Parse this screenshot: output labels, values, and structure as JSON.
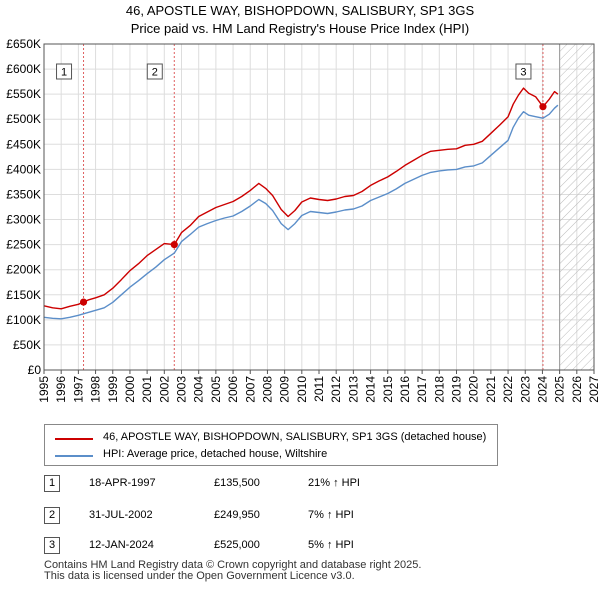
{
  "title_line1": "46, APOSTLE WAY, BISHOPDOWN, SALISBURY, SP1 3GS",
  "title_line2": "Price paid vs. HM Land Registry's House Price Index (HPI)",
  "colors": {
    "property": "#cc0000",
    "hpi": "#5b8ec9",
    "grid": "#dddddd",
    "vline": "#e06060",
    "hatch": "#bbbbbb",
    "marker_bg": "#ffffff"
  },
  "legend": {
    "property": "46, APOSTLE WAY, BISHOPDOWN, SALISBURY, SP1 3GS (detached house)",
    "hpi": "HPI: Average price, detached house, Wiltshire"
  },
  "sales": [
    {
      "num": "1",
      "date": "18-APR-1997",
      "price": "£135,500",
      "hpi": "21% ↑ HPI"
    },
    {
      "num": "2",
      "date": "31-JUL-2002",
      "price": "£249,950",
      "hpi": "7% ↑ HPI"
    },
    {
      "num": "3",
      "date": "12-JAN-2024",
      "price": "£525,000",
      "hpi": "5% ↑ HPI"
    }
  ],
  "footer": {
    "line1": "Contains HM Land Registry data © Crown copyright and database right 2025.",
    "line2": "This data is licensed under the Open Government Licence v3.0."
  },
  "chart_data": {
    "type": "line",
    "xlim": [
      1995,
      2027
    ],
    "ylim": [
      0,
      650000
    ],
    "x_ticks": [
      "1995",
      "1996",
      "1997",
      "1998",
      "1999",
      "2000",
      "2001",
      "2002",
      "2003",
      "2004",
      "2005",
      "2006",
      "2007",
      "2008",
      "2009",
      "2010",
      "2011",
      "2012",
      "2013",
      "2014",
      "2015",
      "2016",
      "2017",
      "2018",
      "2019",
      "2020",
      "2021",
      "2022",
      "2023",
      "2024",
      "2025",
      "2026",
      "2027"
    ],
    "y_ticks": [
      {
        "v": 0,
        "label": "£0"
      },
      {
        "v": 50000,
        "label": "£50K"
      },
      {
        "v": 100000,
        "label": "£100K"
      },
      {
        "v": 150000,
        "label": "£150K"
      },
      {
        "v": 200000,
        "label": "£200K"
      },
      {
        "v": 250000,
        "label": "£250K"
      },
      {
        "v": 300000,
        "label": "£300K"
      },
      {
        "v": 350000,
        "label": "£350K"
      },
      {
        "v": 400000,
        "label": "£400K"
      },
      {
        "v": 450000,
        "label": "£450K"
      },
      {
        "v": 500000,
        "label": "£500K"
      },
      {
        "v": 550000,
        "label": "£550K"
      },
      {
        "v": 600000,
        "label": "£600K"
      },
      {
        "v": 650000,
        "label": "£650K"
      }
    ],
    "forecast_start": 2025.0,
    "series": [
      {
        "name": "46, APOSTLE WAY, BISHOPDOWN, SALISBURY, SP1 3GS (detached house)",
        "x": [
          1995.0,
          1995.5,
          1996.0,
          1996.5,
          1997.0,
          1997.3,
          1997.6,
          1998.0,
          1998.5,
          1999.0,
          1999.5,
          2000.0,
          2000.5,
          2001.0,
          2001.5,
          2002.0,
          2002.58,
          2003.0,
          2003.5,
          2004.0,
          2004.5,
          2005.0,
          2005.5,
          2006.0,
          2006.5,
          2007.0,
          2007.5,
          2007.9,
          2008.3,
          2008.8,
          2009.2,
          2009.6,
          2010.0,
          2010.5,
          2011.0,
          2011.5,
          2012.0,
          2012.5,
          2013.0,
          2013.5,
          2014.0,
          2014.5,
          2015.0,
          2015.5,
          2016.0,
          2016.5,
          2017.0,
          2017.5,
          2018.0,
          2018.5,
          2019.0,
          2019.5,
          2020.0,
          2020.5,
          2021.0,
          2021.5,
          2022.0,
          2022.3,
          2022.6,
          2022.9,
          2023.2,
          2023.6,
          2024.03,
          2024.4,
          2024.7,
          2024.9
        ],
        "y": [
          128000,
          124000,
          122000,
          127000,
          131000,
          135500,
          140000,
          144000,
          150000,
          163000,
          180000,
          198000,
          212000,
          228000,
          240000,
          252000,
          249950,
          274000,
          288000,
          306000,
          315000,
          324000,
          330000,
          336000,
          346000,
          358000,
          372000,
          362000,
          348000,
          320000,
          306000,
          318000,
          335000,
          343000,
          340000,
          338000,
          341000,
          346000,
          348000,
          356000,
          368000,
          377000,
          385000,
          396000,
          408000,
          418000,
          428000,
          436000,
          438000,
          440000,
          441000,
          448000,
          450000,
          456000,
          472000,
          488000,
          505000,
          530000,
          548000,
          562000,
          552000,
          545000,
          525000,
          540000,
          555000,
          550000
        ]
      },
      {
        "name": "HPI: Average price, detached house, Wiltshire",
        "x": [
          1995.0,
          1995.5,
          1996.0,
          1996.5,
          1997.0,
          1997.3,
          1997.6,
          1998.0,
          1998.5,
          1999.0,
          1999.5,
          2000.0,
          2000.5,
          2001.0,
          2001.5,
          2002.0,
          2002.58,
          2003.0,
          2003.5,
          2004.0,
          2004.5,
          2005.0,
          2005.5,
          2006.0,
          2006.5,
          2007.0,
          2007.5,
          2007.9,
          2008.3,
          2008.8,
          2009.2,
          2009.6,
          2010.0,
          2010.5,
          2011.0,
          2011.5,
          2012.0,
          2012.5,
          2013.0,
          2013.5,
          2014.0,
          2014.5,
          2015.0,
          2015.5,
          2016.0,
          2016.5,
          2017.0,
          2017.5,
          2018.0,
          2018.5,
          2019.0,
          2019.5,
          2020.0,
          2020.5,
          2021.0,
          2021.5,
          2022.0,
          2022.3,
          2022.6,
          2022.9,
          2023.2,
          2023.6,
          2024.03,
          2024.4,
          2024.7,
          2024.9
        ],
        "y": [
          105000,
          103000,
          102000,
          105000,
          109000,
          112000,
          115000,
          119000,
          124000,
          135000,
          150000,
          165000,
          178000,
          192000,
          205000,
          220000,
          233000,
          256000,
          270000,
          285000,
          292000,
          298000,
          303000,
          307000,
          316000,
          327000,
          340000,
          332000,
          318000,
          292000,
          280000,
          292000,
          308000,
          316000,
          314000,
          312000,
          315000,
          319000,
          321000,
          327000,
          338000,
          345000,
          352000,
          361000,
          372000,
          380000,
          388000,
          394000,
          397000,
          399000,
          400000,
          405000,
          407000,
          413000,
          428000,
          443000,
          458000,
          484000,
          502000,
          515000,
          508000,
          505000,
          502000,
          510000,
          522000,
          528000
        ]
      }
    ],
    "markers": [
      {
        "label": "1",
        "x": 1997.3,
        "y": 135500
      },
      {
        "label": "2",
        "x": 2002.58,
        "y": 249950
      },
      {
        "label": "3",
        "x": 2024.03,
        "y": 525000
      }
    ]
  }
}
